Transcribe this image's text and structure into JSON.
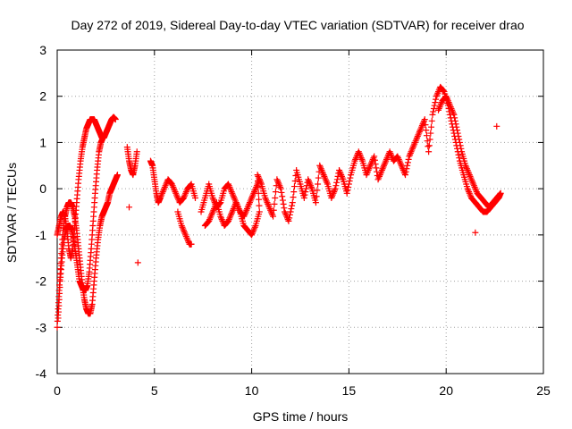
{
  "chart_data": {
    "type": "scatter",
    "title": "Day 272 of 2019, Sidereal Day-to-day VTEC variation (SDTVAR) for receiver drao",
    "xlabel": "GPS time / hours",
    "ylabel": "SDTVAR / TECUs",
    "xlim": [
      0,
      25
    ],
    "ylim": [
      -4,
      3
    ],
    "x_ticks": [
      0,
      5,
      10,
      15,
      20,
      25
    ],
    "x_tick_labels": [
      "0",
      "5",
      "10",
      "15",
      "20",
      "25"
    ],
    "y_ticks": [
      -4,
      -3,
      -2,
      -1,
      0,
      1,
      2,
      3
    ],
    "y_tick_labels": [
      "-4",
      "-3",
      "-2",
      "-1",
      "0",
      "1",
      "2",
      "3"
    ],
    "grid": true,
    "marker": "plus",
    "series": [
      {
        "name": "drao",
        "color": "#ff0000",
        "x": [
          0.0,
          0.1,
          0.2,
          0.3,
          0.4,
          0.5,
          0.6,
          0.7,
          0.8,
          0.9,
          1.0,
          1.1,
          1.2,
          1.3,
          1.4,
          1.5,
          1.6,
          1.7,
          1.8,
          1.9,
          2.0,
          2.1,
          2.2,
          2.3,
          2.4,
          2.5,
          2.6,
          2.7,
          2.8,
          2.9,
          3.0,
          3.1,
          0.05,
          0.15,
          0.25,
          0.35,
          0.45,
          0.55,
          0.65,
          0.75,
          0.85,
          0.95,
          1.05,
          1.15,
          1.25,
          1.35,
          1.45,
          1.55,
          1.65,
          1.75,
          1.85,
          1.95,
          2.05,
          2.15,
          2.25,
          2.35,
          0.0,
          0.1,
          0.2,
          0.3,
          0.4,
          0.5,
          0.6,
          0.7,
          0.8,
          0.9,
          1.0,
          1.1,
          1.2,
          1.3,
          1.4,
          1.5,
          1.6,
          1.7,
          1.8,
          1.9,
          2.0,
          2.1,
          2.2,
          2.3,
          2.4,
          2.5,
          2.6,
          2.7,
          2.8,
          2.9,
          3.0,
          3.6,
          3.7,
          3.8,
          3.9,
          4.0,
          4.1,
          4.15,
          3.7,
          4.8,
          4.9,
          5.0,
          5.1,
          5.2,
          5.3,
          5.5,
          5.7,
          5.9,
          6.1,
          6.3,
          6.5,
          6.7,
          6.9,
          7.1,
          6.2,
          6.4,
          6.6,
          6.8,
          6.9,
          7.4,
          7.6,
          7.8,
          8.0,
          8.2,
          8.4,
          8.6,
          8.8,
          9.0,
          9.2,
          9.4,
          9.6,
          9.8,
          10.0,
          10.2,
          10.4,
          7.6,
          7.8,
          8.0,
          8.2,
          8.4,
          8.6,
          8.8,
          9.0,
          9.2,
          9.4,
          9.6,
          9.8,
          10.0,
          10.2,
          10.4,
          10.3,
          10.5,
          10.7,
          10.9,
          11.1,
          11.3,
          11.5,
          11.7,
          11.9,
          12.1,
          12.3,
          12.5,
          12.7,
          12.9,
          13.1,
          13.3,
          13.5,
          13.7,
          13.9,
          14.1,
          14.3,
          14.5,
          14.7,
          14.9,
          15.1,
          15.3,
          15.5,
          15.7,
          15.9,
          16.1,
          16.3,
          16.5,
          16.7,
          16.9,
          17.1,
          17.3,
          17.5,
          17.7,
          17.9,
          18.1,
          18.3,
          18.5,
          18.7,
          18.9,
          19.1,
          19.3,
          19.5,
          19.7,
          19.9,
          20.1,
          20.3,
          20.5,
          20.7,
          20.9,
          21.1,
          21.3,
          21.5,
          21.7,
          21.9,
          22.1,
          22.3,
          22.5,
          22.7,
          22.8,
          19.6,
          19.8,
          20.0,
          20.2,
          20.4,
          20.6,
          20.8,
          21.0,
          21.2,
          21.4,
          21.6,
          21.8,
          22.0,
          22.2,
          22.4,
          22.6,
          22.8,
          21.5,
          22.6
        ],
        "y": [
          -3.0,
          -2.2,
          -1.5,
          -0.9,
          -0.6,
          -0.4,
          -0.3,
          -0.3,
          -0.4,
          -0.6,
          -0.9,
          -1.3,
          -1.7,
          -2.1,
          -2.4,
          -2.6,
          -2.7,
          -2.7,
          -2.5,
          -2.0,
          -1.5,
          -1.1,
          -0.8,
          -0.6,
          -0.5,
          -0.4,
          -0.3,
          -0.1,
          0.0,
          0.1,
          0.2,
          0.3,
          -2.8,
          -2.0,
          -1.5,
          -1.1,
          -0.9,
          -0.8,
          -0.8,
          -0.9,
          -1.1,
          -1.4,
          -1.7,
          -2.0,
          -2.1,
          -2.2,
          -2.2,
          -2.1,
          -1.8,
          -1.3,
          -0.7,
          -0.1,
          0.4,
          0.8,
          1.0,
          1.1,
          -1.0,
          -0.8,
          -0.6,
          -0.5,
          -0.6,
          -0.9,
          -1.3,
          -1.5,
          -1.3,
          -0.8,
          -0.3,
          0.2,
          0.6,
          0.9,
          1.1,
          1.3,
          1.4,
          1.5,
          1.5,
          1.5,
          1.4,
          1.3,
          1.2,
          1.1,
          1.1,
          1.2,
          1.3,
          1.4,
          1.5,
          1.55,
          1.5,
          0.9,
          0.6,
          0.4,
          0.3,
          0.5,
          0.8,
          -1.6,
          -0.4,
          0.6,
          0.5,
          0.2,
          -0.1,
          -0.3,
          -0.2,
          0.0,
          0.2,
          0.1,
          -0.1,
          -0.3,
          -0.2,
          0.0,
          0.1,
          -0.2,
          -0.5,
          -0.8,
          -1.0,
          -1.2,
          -1.2,
          -0.5,
          -0.2,
          0.1,
          -0.2,
          -0.4,
          -0.3,
          0.0,
          0.1,
          -0.1,
          -0.3,
          -0.5,
          -0.6,
          -0.4,
          -0.2,
          0.0,
          0.2,
          -0.8,
          -0.7,
          -0.5,
          -0.3,
          -0.6,
          -0.8,
          -0.7,
          -0.5,
          -0.3,
          -0.5,
          -0.8,
          -0.9,
          -1.0,
          -0.8,
          -0.5,
          0.3,
          0.1,
          -0.2,
          -0.4,
          -0.6,
          0.2,
          0.0,
          -0.5,
          -0.7,
          -0.3,
          0.4,
          0.1,
          -0.2,
          0.2,
          0.0,
          -0.3,
          0.5,
          0.3,
          0.1,
          -0.2,
          0.0,
          0.4,
          0.2,
          -0.1,
          0.3,
          0.6,
          0.8,
          0.6,
          0.3,
          0.5,
          0.7,
          0.2,
          0.4,
          0.6,
          0.8,
          0.6,
          0.7,
          0.5,
          0.3,
          0.7,
          0.9,
          1.1,
          1.3,
          1.5,
          0.8,
          1.6,
          2.0,
          2.2,
          2.1,
          1.8,
          1.4,
          1.0,
          0.6,
          0.3,
          0.0,
          -0.2,
          -0.3,
          -0.4,
          -0.5,
          -0.5,
          -0.4,
          -0.3,
          -0.2,
          -0.1,
          1.7,
          1.9,
          2.0,
          1.8,
          1.6,
          1.2,
          0.8,
          0.5,
          0.3,
          0.1,
          -0.1,
          -0.2,
          -0.3,
          -0.4,
          -0.3,
          -0.2,
          -0.1,
          -0.95,
          1.35
        ]
      }
    ]
  }
}
